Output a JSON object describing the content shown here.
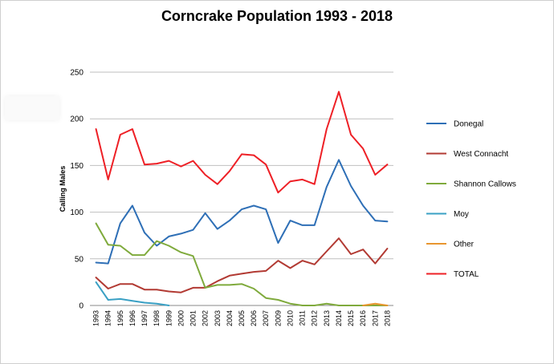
{
  "chart_data": {
    "type": "line",
    "title": "Corncrake Population 1993 - 2018",
    "xlabel": "",
    "ylabel": "Calling Males",
    "ylim": [
      0,
      250
    ],
    "yticks": [
      0,
      50,
      100,
      150,
      200,
      250
    ],
    "grid": true,
    "legend_position": "right",
    "x": [
      "1993",
      "1994",
      "1995",
      "1996",
      "1997",
      "1998",
      "1999",
      "2000",
      "2001",
      "2002",
      "2003",
      "2004",
      "2005",
      "2006",
      "2007",
      "2009",
      "2010",
      "2011",
      "2012",
      "2013",
      "2014",
      "2015",
      "2016",
      "2017",
      "2018"
    ],
    "series": [
      {
        "name": "Donegal",
        "color": "#2e6fb6",
        "values": [
          46,
          45,
          88,
          107,
          78,
          64,
          74,
          77,
          81,
          99,
          82,
          91,
          103,
          107,
          103,
          67,
          91,
          86,
          86,
          127,
          156,
          128,
          107,
          91,
          90
        ]
      },
      {
        "name": "West Connacht",
        "color": "#b23a33",
        "values": [
          30,
          18,
          23,
          23,
          17,
          17,
          15,
          14,
          19,
          19,
          26,
          32,
          34,
          36,
          37,
          48,
          40,
          48,
          44,
          58,
          72,
          55,
          60,
          45,
          61
        ]
      },
      {
        "name": "Shannon Callows",
        "color": "#7faa3c",
        "values": [
          88,
          65,
          64,
          54,
          54,
          69,
          64,
          57,
          53,
          19,
          22,
          22,
          23,
          18,
          8,
          6,
          2,
          0,
          0,
          2,
          0,
          0,
          0,
          0,
          0
        ]
      },
      {
        "name": "Moy",
        "color": "#3aa0c4",
        "values": [
          25,
          6,
          7,
          5,
          3,
          2,
          0,
          null,
          null,
          null,
          null,
          null,
          null,
          null,
          null,
          null,
          null,
          null,
          null,
          null,
          null,
          null,
          null,
          null,
          null
        ]
      },
      {
        "name": "Other",
        "color": "#e8962f",
        "values": [
          null,
          null,
          null,
          null,
          null,
          null,
          null,
          null,
          null,
          null,
          null,
          null,
          null,
          null,
          null,
          null,
          null,
          null,
          null,
          null,
          null,
          null,
          0,
          2,
          0
        ]
      },
      {
        "name": "TOTAL",
        "color": "#ee2026",
        "values": [
          189,
          135,
          183,
          189,
          151,
          152,
          155,
          149,
          155,
          140,
          130,
          144,
          162,
          161,
          151,
          121,
          133,
          135,
          130,
          189,
          229,
          183,
          168,
          140,
          151
        ]
      }
    ]
  }
}
